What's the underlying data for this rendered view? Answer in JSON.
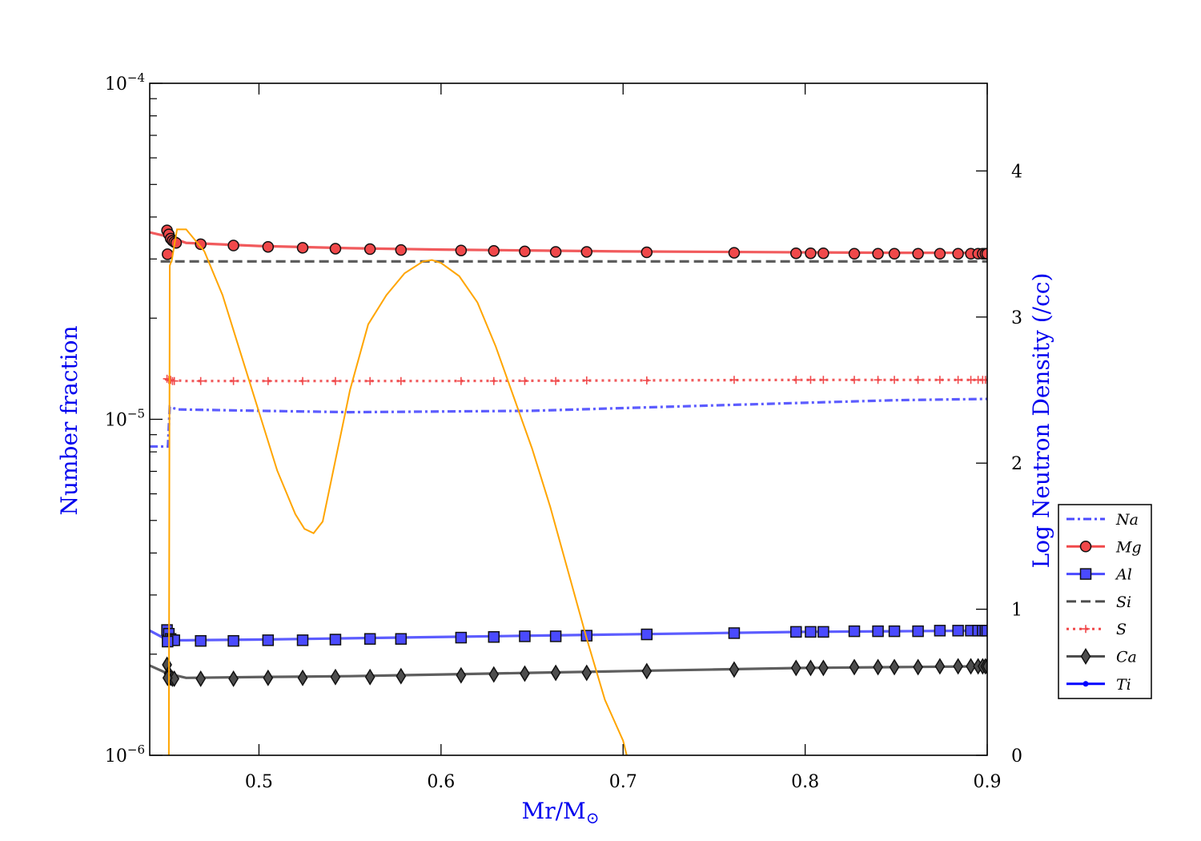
{
  "chart_data": {
    "type": "line",
    "xlabel": "Mr/M",
    "xlabel_sub": "⊙",
    "ylabel_left": "Number fraction",
    "ylabel_right": "Log Neutron Density (/cc)",
    "x_range": [
      0.44,
      0.9
    ],
    "x_ticks": [
      0.5,
      0.6,
      0.7,
      0.8,
      0.9
    ],
    "x_tick_labels": [
      "0.5",
      "0.6",
      "0.7",
      "0.8",
      "0.9"
    ],
    "y_left_scale": "log",
    "y_left_range": [
      1e-06,
      0.0001
    ],
    "y_left_ticks": [
      {
        "base": "10",
        "exp": "−6",
        "value": 1e-06
      },
      {
        "base": "10",
        "exp": "−5",
        "value": 1e-05
      },
      {
        "base": "10",
        "exp": "−4",
        "value": 0.0001
      }
    ],
    "y_right_range": [
      0,
      4.6
    ],
    "y_right_ticks": [
      0,
      1,
      2,
      3,
      4
    ],
    "y_right_tick_labels": [
      "0",
      "1",
      "2",
      "3",
      "4"
    ],
    "grid": false,
    "legend_position": "right, outside plot",
    "series": [
      {
        "name": "Na",
        "color": "#4a4aff",
        "dash": "dashdot",
        "marker": "none",
        "axis": "left",
        "x": [
          0.44,
          0.45,
          0.451,
          0.455,
          0.5,
          0.55,
          0.6,
          0.65,
          0.7,
          0.75,
          0.8,
          0.85,
          0.9
        ],
        "y": [
          8.3e-06,
          8.3e-06,
          1.09e-05,
          1.07e-05,
          1.06e-05,
          1.05e-05,
          1.055e-05,
          1.06e-05,
          1.08e-05,
          1.1e-05,
          1.12e-05,
          1.14e-05,
          1.15e-05
        ]
      },
      {
        "name": "Mg",
        "color": "#f0484a",
        "dash": "solid",
        "marker": "circle",
        "axis": "left",
        "x": [
          0.44,
          0.45,
          0.46,
          0.5,
          0.55,
          0.6,
          0.65,
          0.7,
          0.75,
          0.8,
          0.85,
          0.9
        ],
        "y": [
          3.6e-05,
          3.5e-05,
          3.35e-05,
          3.28e-05,
          3.23e-05,
          3.2e-05,
          3.18e-05,
          3.16e-05,
          3.15e-05,
          3.14e-05,
          3.13e-05,
          3.13e-05
        ],
        "markers_x": [
          0.4495,
          0.4505,
          0.4515,
          0.4525,
          0.4535,
          0.4545,
          0.4498,
          0.468,
          0.486,
          0.505,
          0.524,
          0.542,
          0.561,
          0.578,
          0.611,
          0.629,
          0.646,
          0.663,
          0.68,
          0.713,
          0.761,
          0.795,
          0.803,
          0.81,
          0.827,
          0.84,
          0.849,
          0.862,
          0.874,
          0.884,
          0.891,
          0.895,
          0.8975,
          0.899,
          0.9
        ],
        "markers_y": [
          3.65e-05,
          3.55e-05,
          3.45e-05,
          3.4e-05,
          3.37e-05,
          3.35e-05,
          3.1e-05,
          3.32e-05,
          3.29e-05,
          3.26e-05,
          3.24e-05,
          3.22e-05,
          3.21e-05,
          3.19e-05,
          3.18e-05,
          3.17e-05,
          3.16e-05,
          3.15e-05,
          3.15e-05,
          3.14e-05,
          3.13e-05,
          3.12e-05,
          3.12e-05,
          3.12e-05,
          3.11e-05,
          3.11e-05,
          3.11e-05,
          3.11e-05,
          3.11e-05,
          3.11e-05,
          3.11e-05,
          3.11e-05,
          3.11e-05,
          3.11e-05,
          3.11e-05
        ]
      },
      {
        "name": "Al",
        "color": "#4a4aff",
        "dash": "solid",
        "marker": "square",
        "axis": "left",
        "x": [
          0.44,
          0.45,
          0.46,
          0.5,
          0.55,
          0.6,
          0.65,
          0.7,
          0.75,
          0.8,
          0.85,
          0.9
        ],
        "y": [
          2.35e-06,
          2.2e-06,
          2.2e-06,
          2.21e-06,
          2.23e-06,
          2.25e-06,
          2.27e-06,
          2.29e-06,
          2.31e-06,
          2.33e-06,
          2.34e-06,
          2.35e-06
        ],
        "markers_x": [
          0.4495,
          0.4505,
          0.4515,
          0.4525,
          0.4535,
          0.4498,
          0.468,
          0.486,
          0.505,
          0.524,
          0.542,
          0.561,
          0.578,
          0.611,
          0.629,
          0.646,
          0.663,
          0.68,
          0.713,
          0.761,
          0.795,
          0.803,
          0.81,
          0.827,
          0.84,
          0.849,
          0.862,
          0.874,
          0.884,
          0.891,
          0.895,
          0.8975,
          0.899,
          0.9
        ],
        "markers_y": [
          2.36e-06,
          2.3e-06,
          2.22e-06,
          2.2e-06,
          2.2e-06,
          2.18e-06,
          2.19e-06,
          2.19e-06,
          2.2e-06,
          2.2e-06,
          2.21e-06,
          2.22e-06,
          2.22e-06,
          2.24e-06,
          2.25e-06,
          2.26e-06,
          2.26e-06,
          2.27e-06,
          2.29e-06,
          2.31e-06,
          2.33e-06,
          2.33e-06,
          2.33e-06,
          2.34e-06,
          2.34e-06,
          2.34e-06,
          2.34e-06,
          2.35e-06,
          2.35e-06,
          2.35e-06,
          2.35e-06,
          2.35e-06,
          2.35e-06,
          2.35e-06
        ]
      },
      {
        "name": "Si",
        "color": "#4d4d4d",
        "dash": "dashed",
        "marker": "none",
        "axis": "left",
        "x": [
          0.446,
          0.9
        ],
        "y": [
          2.95e-05,
          2.95e-05
        ]
      },
      {
        "name": "S",
        "color": "#f0484a",
        "dash": "dotted",
        "marker": "plus",
        "axis": "left",
        "x": [
          0.449,
          0.45,
          0.46,
          0.5,
          0.6,
          0.7,
          0.8,
          0.9
        ],
        "y": [
          1.31e-05,
          1.31e-05,
          1.3e-05,
          1.3e-05,
          1.3e-05,
          1.305e-05,
          1.31e-05,
          1.31e-05
        ],
        "markers_x": [
          0.4495,
          0.4505,
          0.4515,
          0.4525,
          0.4535,
          0.468,
          0.486,
          0.505,
          0.524,
          0.542,
          0.561,
          0.578,
          0.611,
          0.629,
          0.646,
          0.663,
          0.68,
          0.713,
          0.761,
          0.795,
          0.803,
          0.81,
          0.827,
          0.84,
          0.849,
          0.862,
          0.874,
          0.884,
          0.891,
          0.895,
          0.8975,
          0.899,
          0.9
        ],
        "markers_y": [
          1.32e-05,
          1.31e-05,
          1.31e-05,
          1.3e-05,
          1.3e-05,
          1.3e-05,
          1.3e-05,
          1.3e-05,
          1.3e-05,
          1.3e-05,
          1.3e-05,
          1.3e-05,
          1.3e-05,
          1.3e-05,
          1.3e-05,
          1.3e-05,
          1.305e-05,
          1.305e-05,
          1.31e-05,
          1.31e-05,
          1.31e-05,
          1.31e-05,
          1.31e-05,
          1.31e-05,
          1.31e-05,
          1.31e-05,
          1.31e-05,
          1.31e-05,
          1.31e-05,
          1.31e-05,
          1.31e-05,
          1.31e-05,
          1.31e-05
        ]
      },
      {
        "name": "Ca",
        "color": "#4d4d4d",
        "dash": "solid",
        "marker": "diamond",
        "axis": "left",
        "x": [
          0.44,
          0.45,
          0.46,
          0.5,
          0.55,
          0.6,
          0.65,
          0.7,
          0.75,
          0.8,
          0.85,
          0.9
        ],
        "y": [
          1.85e-06,
          1.75e-06,
          1.7e-06,
          1.71e-06,
          1.72e-06,
          1.74e-06,
          1.76e-06,
          1.78e-06,
          1.8e-06,
          1.82e-06,
          1.83e-06,
          1.84e-06
        ],
        "markers_x": [
          0.4495,
          0.4505,
          0.4515,
          0.4525,
          0.4535,
          0.4498,
          0.468,
          0.486,
          0.505,
          0.524,
          0.542,
          0.561,
          0.578,
          0.611,
          0.629,
          0.646,
          0.663,
          0.68,
          0.713,
          0.761,
          0.795,
          0.803,
          0.81,
          0.827,
          0.84,
          0.849,
          0.862,
          0.874,
          0.884,
          0.891,
          0.895,
          0.8975,
          0.899,
          0.9
        ],
        "markers_y": [
          1.86e-06,
          1.75e-06,
          1.7e-06,
          1.69e-06,
          1.69e-06,
          1.7e-06,
          1.69e-06,
          1.69e-06,
          1.7e-06,
          1.7e-06,
          1.71e-06,
          1.71e-06,
          1.72e-06,
          1.73e-06,
          1.74e-06,
          1.75e-06,
          1.76e-06,
          1.76e-06,
          1.78e-06,
          1.8e-06,
          1.82e-06,
          1.82e-06,
          1.82e-06,
          1.83e-06,
          1.83e-06,
          1.83e-06,
          1.83e-06,
          1.84e-06,
          1.84e-06,
          1.84e-06,
          1.84e-06,
          1.84e-06,
          1.84e-06,
          1.84e-06
        ]
      },
      {
        "name": "Ti",
        "color": "#0000ff",
        "dash": "solid",
        "marker": "dot",
        "axis": "left",
        "x": [],
        "y": []
      },
      {
        "name": "",
        "color": "#ffa500",
        "dash": "solid",
        "marker": "none",
        "axis": "right",
        "x": [
          0.4505,
          0.451,
          0.4515,
          0.452,
          0.455,
          0.46,
          0.47,
          0.48,
          0.49,
          0.5,
          0.51,
          0.52,
          0.525,
          0.53,
          0.535,
          0.54,
          0.55,
          0.56,
          0.57,
          0.58,
          0.59,
          0.595,
          0.6,
          0.61,
          0.62,
          0.63,
          0.64,
          0.65,
          0.66,
          0.67,
          0.68,
          0.69,
          0.7,
          0.702
        ],
        "y": [
          0,
          3.35,
          3.37,
          3.38,
          3.6,
          3.6,
          3.45,
          3.15,
          2.75,
          2.35,
          1.95,
          1.65,
          1.55,
          1.52,
          1.6,
          1.9,
          2.5,
          2.95,
          3.15,
          3.3,
          3.38,
          3.39,
          3.37,
          3.28,
          3.1,
          2.8,
          2.45,
          2.1,
          1.7,
          1.25,
          0.8,
          0.38,
          0.1,
          0
        ]
      }
    ]
  }
}
